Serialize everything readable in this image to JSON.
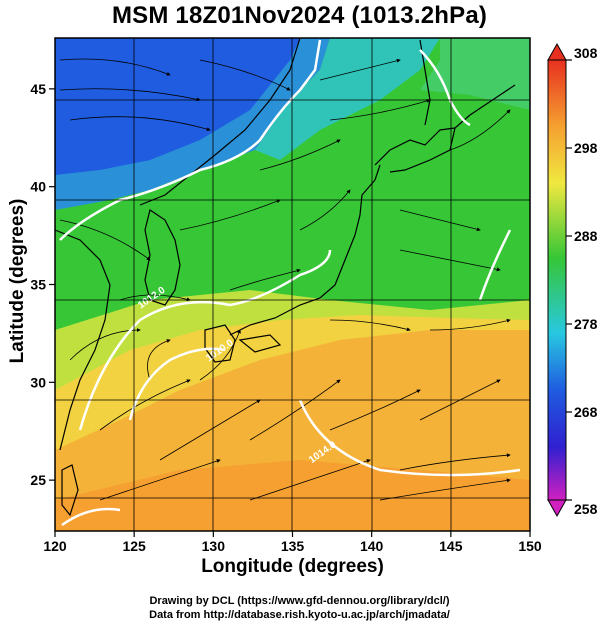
{
  "title": "MSM 18Z01Nov2024 (1013.2hPa)",
  "x_axis": {
    "label": "Longitude (degrees)",
    "ticks": [
      "120",
      "125",
      "130",
      "135",
      "140",
      "145",
      "150"
    ],
    "range": [
      120,
      150
    ]
  },
  "y_axis": {
    "label": "Latitude  (degrees)",
    "ticks": [
      "25",
      "30",
      "35",
      "40",
      "45"
    ],
    "range": [
      22.4,
      47.6
    ]
  },
  "colorbar": {
    "ticks": [
      "308",
      "298",
      "288",
      "278",
      "268",
      "258"
    ],
    "range": [
      258,
      308
    ],
    "unit_hint": "K"
  },
  "contour_labels": [
    {
      "text": "1012.0",
      "lon": 126.2,
      "lat": 34.2
    },
    {
      "text": "1010.0",
      "lon": 130.5,
      "lat": 31.5
    },
    {
      "text": "1014.0",
      "lon": 137.0,
      "lat": 26.3
    }
  ],
  "credits": {
    "line1": "Drawing by DCL (https://www.gfd-dennou.org/library/dcl/)",
    "line2": "Data from http://database.rish.kyoto-u.ac.jp/arch/jmadata/"
  },
  "colors": {
    "cold": "#1f5ce0",
    "mid_cold": "#28c8e0",
    "neutral": "#36c636",
    "warm": "#f0e840",
    "hot": "#f5a030",
    "very_hot": "#e83020",
    "contour": "#ffffff",
    "land_outline": "#000000"
  }
}
